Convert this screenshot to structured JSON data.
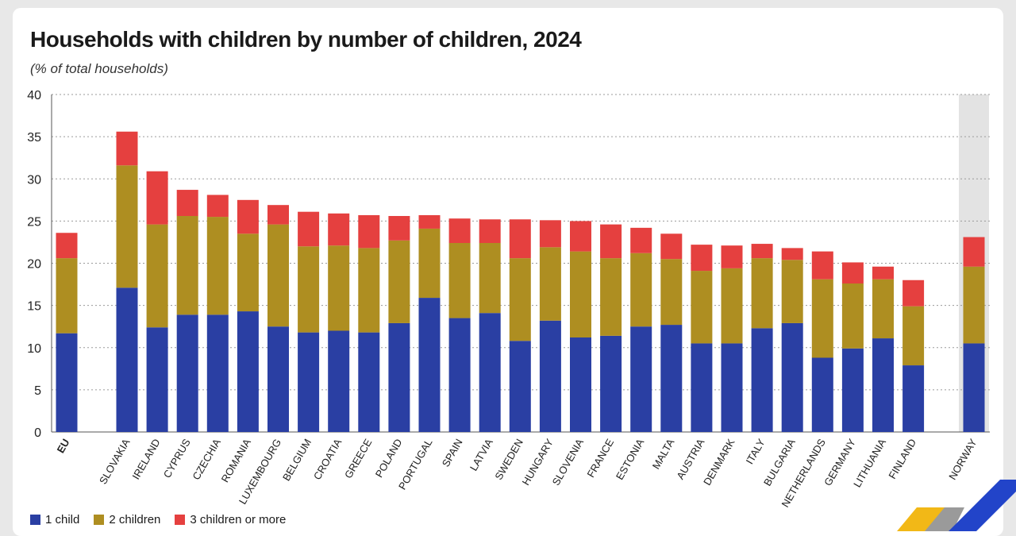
{
  "title": "Households with children by number of children, 2024",
  "subtitle": "(% of total households)",
  "colors": {
    "one": "#2a3fa3",
    "two": "#ae8e21",
    "three": "#e5403f"
  },
  "legend": [
    "1 child",
    "2 children",
    "3 children or more"
  ],
  "chart_data": {
    "type": "bar",
    "stacked": true,
    "ylim": [
      0,
      40
    ],
    "yticks": [
      0,
      5,
      10,
      15,
      20,
      25,
      30,
      35,
      40
    ],
    "categories": [
      "EU",
      "SLOVAKIA",
      "IRELAND",
      "CYPRUS",
      "CZECHIA",
      "ROMANIA",
      "LUXEMBOURG",
      "BELGIUM",
      "CROATIA",
      "GREECE",
      "POLAND",
      "PORTUGAL",
      "SPAIN",
      "LATVIA",
      "SWEDEN",
      "HUNGARY",
      "SLOVENIA",
      "FRANCE",
      "ESTONIA",
      "MALTA",
      "AUSTRIA",
      "DENMARK",
      "ITALY",
      "BULGARIA",
      "NETHERLANDS",
      "GERMANY",
      "LITHUANIA",
      "FINLAND",
      "NORWAY"
    ],
    "series": [
      {
        "name": "1 child",
        "values": [
          11.7,
          17.1,
          12.4,
          13.9,
          13.9,
          14.3,
          12.5,
          11.8,
          12.0,
          11.8,
          12.9,
          15.9,
          13.5,
          14.1,
          10.8,
          13.2,
          11.2,
          11.4,
          12.5,
          12.7,
          10.5,
          10.5,
          12.3,
          12.9,
          8.8,
          9.9,
          11.1,
          7.9,
          10.5
        ]
      },
      {
        "name": "2 children",
        "values": [
          8.9,
          14.5,
          12.2,
          11.7,
          11.6,
          9.2,
          12.1,
          10.2,
          10.1,
          10.0,
          9.8,
          8.2,
          8.9,
          8.3,
          9.8,
          8.7,
          10.2,
          9.2,
          8.7,
          7.8,
          8.6,
          8.9,
          8.3,
          7.5,
          9.3,
          7.7,
          7.0,
          7.0,
          9.1
        ]
      },
      {
        "name": "3 children or more",
        "values": [
          3.0,
          4.0,
          6.3,
          3.1,
          2.6,
          4.0,
          2.3,
          4.1,
          3.8,
          3.9,
          2.9,
          1.6,
          2.9,
          2.8,
          4.6,
          3.2,
          3.6,
          4.0,
          3.0,
          3.0,
          3.1,
          2.7,
          1.7,
          1.4,
          3.3,
          2.5,
          1.5,
          3.1,
          3.5
        ]
      }
    ],
    "highlight": [
      "NORWAY"
    ]
  }
}
